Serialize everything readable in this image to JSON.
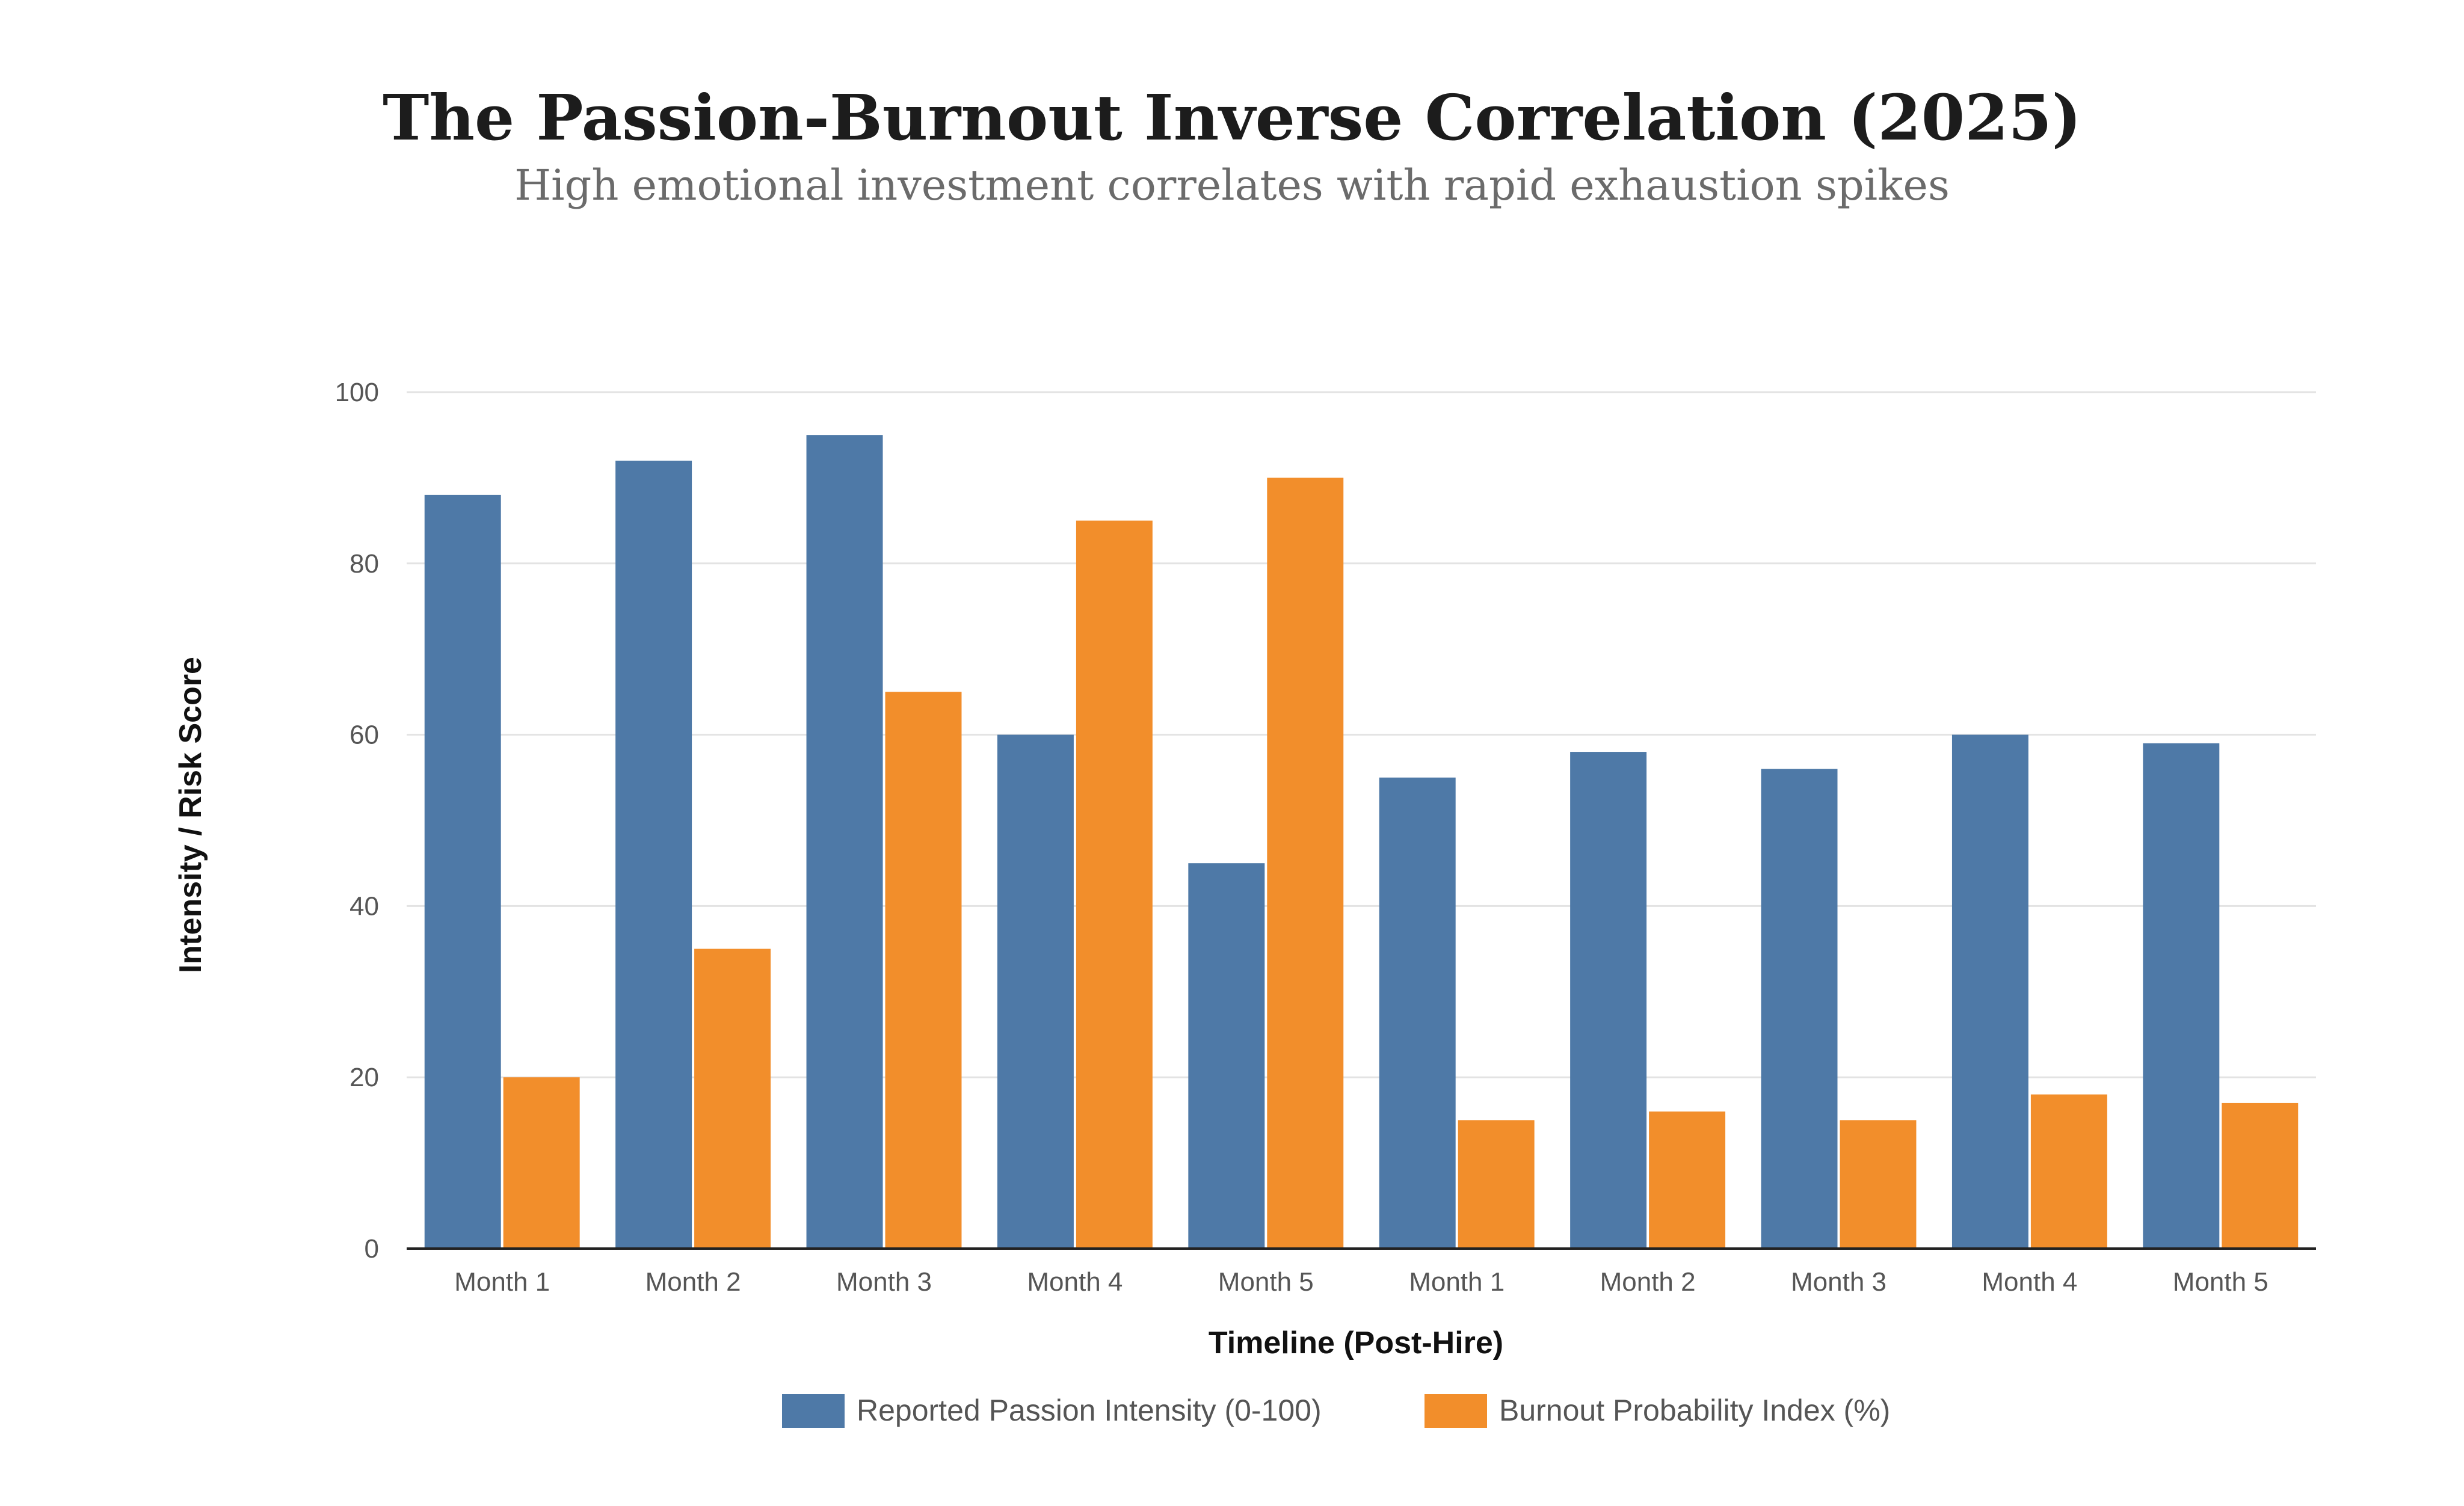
{
  "chart_data": {
    "type": "bar",
    "title": "The Passion-Burnout Inverse Correlation (2025)",
    "subtitle": "High emotional investment correlates with rapid exhaustion spikes",
    "xlabel": "Timeline (Post-Hire)",
    "ylabel": "Intensity / Risk Score",
    "categories": [
      "Month 1",
      "Month 2",
      "Month 3",
      "Month 4",
      "Month 5",
      "Month 1",
      "Month 2",
      "Month 3",
      "Month 4",
      "Month 5"
    ],
    "series": [
      {
        "name": "Reported Passion Intensity (0-100)",
        "color": "#4e79a7",
        "values": [
          88,
          92,
          95,
          60,
          45,
          55,
          58,
          56,
          60,
          59
        ]
      },
      {
        "name": "Burnout Probability Index (%)",
        "color": "#f28e2b",
        "values": [
          20,
          35,
          65,
          85,
          90,
          15,
          16,
          15,
          18,
          17
        ]
      }
    ],
    "ylim": [
      0,
      100
    ],
    "yticks": [
      0,
      20,
      40,
      60,
      80,
      100
    ],
    "grid": true,
    "legend_position": "bottom"
  }
}
